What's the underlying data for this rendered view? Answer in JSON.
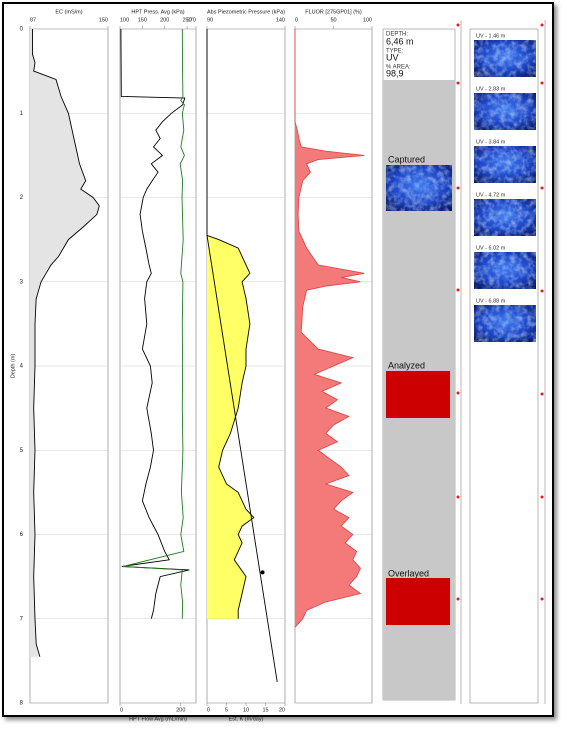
{
  "chart_data": [
    {
      "type": "log",
      "title": "EC (mS/m)",
      "ylabel": "Depth (m)",
      "ylim": [
        0,
        8
      ],
      "yticks": [
        0,
        1,
        2,
        3,
        4,
        5,
        6,
        7,
        8
      ],
      "xlim": [
        87,
        150
      ],
      "xticks": [
        87,
        150
      ],
      "series": [
        {
          "color": "#000000",
          "fill": "#e4e4e4",
          "axis": "x",
          "depth": [
            0,
            0.3,
            0.4,
            0.5,
            0.6,
            0.8,
            1.0,
            1.2,
            1.4,
            1.6,
            1.8,
            1.9,
            2.0,
            2.1,
            2.2,
            2.35,
            2.5,
            2.7,
            2.8,
            2.9,
            3.0,
            3.2,
            3.5,
            4.0,
            4.5,
            5.0,
            5.5,
            6.0,
            6.5,
            7.0,
            7.3,
            7.45
          ],
          "values": [
            89,
            89,
            91,
            90,
            108,
            112,
            118,
            121,
            124,
            127,
            132,
            128,
            138,
            143,
            141,
            130,
            118,
            110,
            104,
            100,
            96,
            92,
            91,
            91,
            90,
            91,
            90,
            91,
            90,
            91,
            92,
            95
          ]
        }
      ]
    },
    {
      "type": "log",
      "title": "HPT Press. Avg (kPa)",
      "x2label": "HPT Flow Avg (mL/min)",
      "ylim": [
        0,
        8
      ],
      "yticks": [
        0,
        1,
        2,
        3,
        4,
        5,
        6,
        7,
        8
      ],
      "xlim": [
        100,
        270
      ],
      "xticks": [
        100,
        150,
        200,
        250,
        270
      ],
      "x2lim": [
        0,
        250
      ],
      "x2ticks": [
        0,
        200
      ],
      "series": [
        {
          "color": "#000000",
          "axis": "x",
          "depth": [
            0,
            0.8,
            0.82,
            0.9,
            1.0,
            1.1,
            1.2,
            1.3,
            1.4,
            1.5,
            1.6,
            1.7,
            1.8,
            1.9,
            2.0,
            2.2,
            2.4,
            2.6,
            2.8,
            2.9,
            3.0,
            3.2,
            3.5,
            3.8,
            4.0,
            4.2,
            4.5,
            4.8,
            5.0,
            5.2,
            5.4,
            5.6,
            5.8,
            6.0,
            6.2,
            6.3,
            6.38,
            6.42,
            6.5,
            6.7,
            6.9,
            7.0
          ],
          "values": [
            102,
            103,
            245,
            240,
            215,
            195,
            180,
            190,
            175,
            195,
            170,
            185,
            172,
            160,
            152,
            145,
            150,
            158,
            165,
            170,
            160,
            155,
            160,
            150,
            168,
            172,
            160,
            170,
            175,
            168,
            158,
            150,
            165,
            185,
            200,
            210,
            104,
            255,
            190,
            180,
            175,
            170
          ]
        },
        {
          "color": "#1f7a1f",
          "axis": "x2",
          "depth": [
            0,
            0.5,
            0.8,
            0.85,
            0.9,
            1.0,
            1.2,
            1.4,
            1.5,
            1.6,
            1.8,
            2.0,
            2.5,
            2.9,
            3.0,
            3.5,
            4.0,
            4.5,
            5.0,
            5.5,
            5.8,
            6.0,
            6.2,
            6.38,
            6.42,
            6.6,
            6.8,
            7.0
          ],
          "values": [
            205,
            206,
            207,
            200,
            212,
            205,
            210,
            200,
            212,
            198,
            206,
            204,
            208,
            200,
            207,
            205,
            206,
            205,
            207,
            202,
            208,
            200,
            210,
            10,
            205,
            200,
            206,
            205
          ]
        }
      ]
    },
    {
      "type": "log",
      "title": "Abs Piezometric Pressure (kPa)",
      "x2label": "Est. K (m/day)",
      "ylim": [
        0,
        8
      ],
      "yticks": [
        0,
        1,
        2,
        3,
        4,
        5,
        6,
        7,
        8
      ],
      "xlim": [
        90,
        140
      ],
      "xticks": [
        90,
        140
      ],
      "x2lim": [
        0,
        20
      ],
      "x2ticks": [
        0,
        5,
        10,
        15,
        20
      ],
      "series": [
        {
          "color": "#000000",
          "fill": "#ffff66",
          "axis": "x2",
          "depth": [
            2.45,
            2.5,
            2.6,
            2.7,
            2.8,
            2.9,
            3.0,
            3.2,
            3.5,
            3.8,
            4.0,
            4.2,
            4.5,
            4.8,
            5.0,
            5.2,
            5.4,
            5.5,
            5.7,
            5.8,
            5.9,
            6.0,
            6.1,
            6.3,
            6.5,
            6.7,
            6.9,
            7.0
          ],
          "values": [
            0,
            3,
            8,
            9,
            10,
            11,
            9,
            10,
            11,
            10,
            10,
            9,
            8,
            6,
            4,
            3,
            5,
            8,
            10,
            12,
            9,
            8,
            9,
            7,
            10,
            9,
            8,
            8
          ]
        },
        {
          "color": "#000000",
          "axis": "x",
          "depth": [
            0,
            2.45,
            7.75
          ],
          "values": [
            90,
            90,
            135
          ]
        },
        {
          "color": "#000000",
          "axis": "x",
          "marker": true,
          "depth": [
            6.45
          ],
          "values": [
            125.6
          ]
        }
      ]
    },
    {
      "type": "log",
      "title": "FLUOR [275GP01] (%)",
      "ylim": [
        0,
        8
      ],
      "yticks": [
        0,
        1,
        2,
        3,
        4,
        5,
        6,
        7,
        8
      ],
      "xlim": [
        0,
        100
      ],
      "xticks": [
        0,
        50,
        100
      ],
      "series": [
        {
          "color": "#e04848",
          "fill": "#f47a7a",
          "axis": "x",
          "depth": [
            0,
            1.1,
            1.2,
            1.3,
            1.4,
            1.45,
            1.5,
            1.55,
            1.6,
            1.7,
            1.8,
            2.0,
            2.2,
            2.4,
            2.6,
            2.8,
            2.9,
            2.95,
            3.0,
            3.05,
            3.1,
            3.3,
            3.6,
            3.8,
            3.9,
            4.0,
            4.1,
            4.2,
            4.3,
            4.4,
            4.5,
            4.6,
            4.7,
            4.8,
            4.9,
            5.0,
            5.1,
            5.2,
            5.3,
            5.4,
            5.5,
            5.6,
            5.7,
            5.8,
            5.9,
            6.0,
            6.1,
            6.2,
            6.3,
            6.4,
            6.5,
            6.6,
            6.7,
            6.8,
            6.9,
            7.0,
            7.1
          ],
          "values": [
            0,
            0,
            3,
            5,
            8,
            40,
            90,
            30,
            15,
            20,
            10,
            5,
            4,
            5,
            15,
            30,
            90,
            60,
            85,
            40,
            15,
            10,
            8,
            30,
            75,
            50,
            25,
            60,
            35,
            55,
            40,
            70,
            50,
            40,
            55,
            30,
            45,
            60,
            70,
            40,
            75,
            60,
            50,
            70,
            60,
            75,
            65,
            80,
            75,
            85,
            80,
            70,
            85,
            40,
            15,
            10,
            0
          ]
        }
      ]
    }
  ],
  "panel": {
    "depth_label": "DEPTH:",
    "depth": "6,46 m",
    "type_label": "TYPE:",
    "type": "UV",
    "area_label": "% AREA:",
    "area": "98,9",
    "images": [
      {
        "label": "Captured"
      },
      {
        "label": "Analyzed"
      },
      {
        "label": "Overlayed"
      }
    ]
  },
  "thumbnails": [
    "UV - 1.46 m",
    "UV - 2.83 m",
    "UV - 3.84 m",
    "UV - 4.72 m",
    "UV - 6.02 m",
    "UV - 6.88 m"
  ]
}
